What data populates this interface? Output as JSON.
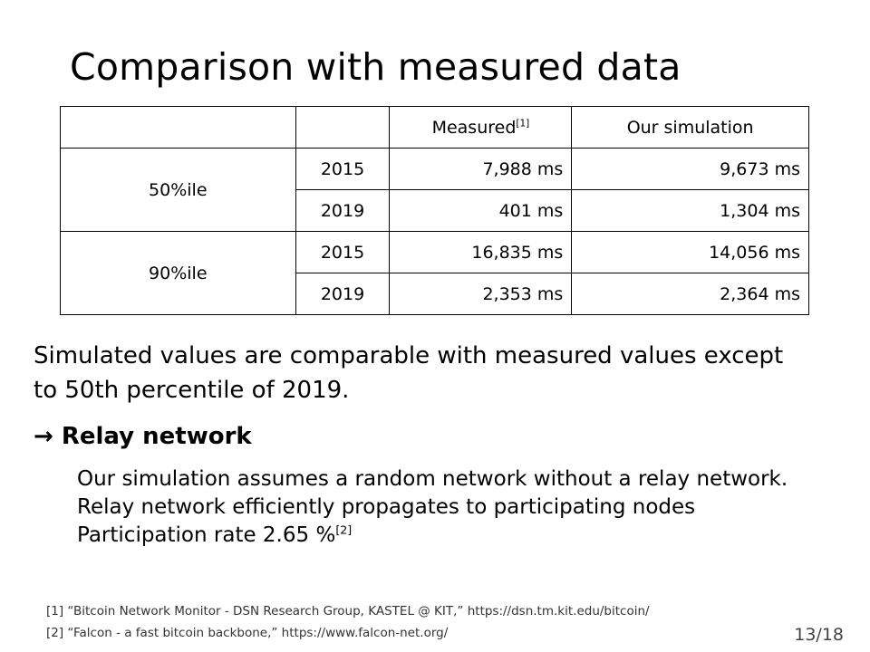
{
  "title": "Comparison with measured data",
  "table": {
    "header": {
      "measured": "Measured",
      "measured_ref": "[1]",
      "simulation": "Our simulation"
    },
    "groups": [
      {
        "label": "50%ile",
        "rows": [
          {
            "year": "2015",
            "measured": "7,988 ms",
            "simulation": "9,673 ms"
          },
          {
            "year": "2019",
            "measured": "401 ms",
            "simulation": "1,304 ms"
          }
        ]
      },
      {
        "label": "90%ile",
        "rows": [
          {
            "year": "2015",
            "measured": "16,835 ms",
            "simulation": "14,056 ms"
          },
          {
            "year": "2019",
            "measured": "2,353 ms",
            "simulation": "2,364 ms"
          }
        ]
      }
    ]
  },
  "paragraph": {
    "line1": "Simulated values are comparable with measured values except",
    "line2": "to 50th percentile of 2019."
  },
  "arrow_heading": "→ Relay network",
  "sub_points": {
    "line1": "Our simulation assumes a random network without a relay network.",
    "line2": "Relay network efficiently propagates to participating nodes",
    "line3": "Participation rate 2.65 %",
    "line3_ref": "[2]"
  },
  "references": {
    "ref1": "[1] “Bitcoin Network Monitor - DSN Research Group, KASTEL @ KIT,”  https://dsn.tm.kit.edu/bitcoin/",
    "ref2": "[2] “Falcon - a fast bitcoin backbone,”  https://www.falcon-net.org/"
  },
  "page_number": "13/18"
}
